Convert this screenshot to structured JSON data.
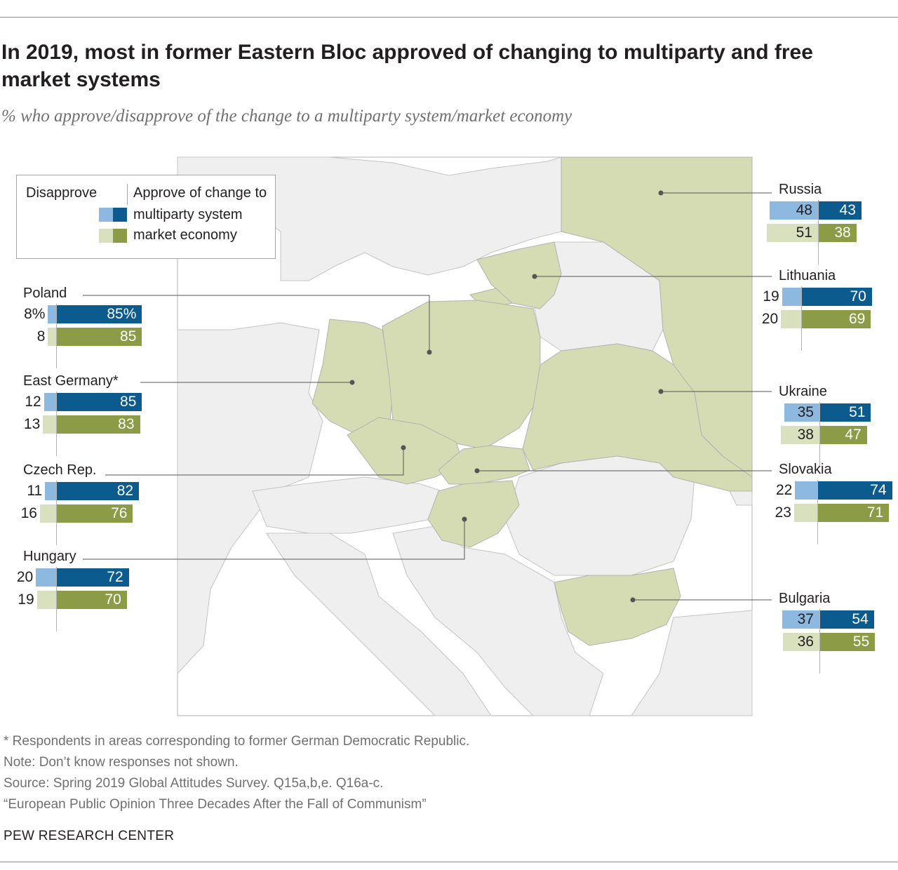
{
  "title": "In 2019, most in former Eastern Bloc approved of changing to multiparty and free market systems",
  "subtitle": "% who approve/disapprove of the change to a multiparty system/market economy",
  "legend": {
    "disapprove_label": "Disapprove",
    "approve_label": "Approve of change to",
    "multiparty_label": "multiparty system",
    "market_label": "market economy"
  },
  "colors": {
    "multiparty_approve": "#0b5b8f",
    "multiparty_disapprove": "#8db8e0",
    "market_approve": "#8c9b45",
    "market_disapprove": "#d9e0bd",
    "highlight_country": "#d5dbb2",
    "other_country": "#efefef",
    "sea": "#ffffff"
  },
  "chart_data": {
    "type": "bar",
    "series_names": [
      "Disapprove multiparty system",
      "Approve multiparty system",
      "Disapprove market economy",
      "Approve market economy"
    ],
    "countries": [
      {
        "name": "Poland",
        "multiparty": {
          "disapprove": 8,
          "approve": 85,
          "disapprove_label": "8%",
          "approve_label": "85%"
        },
        "market": {
          "disapprove": 8,
          "approve": 85,
          "disapprove_label": "8",
          "approve_label": "85"
        }
      },
      {
        "name": "East Germany*",
        "multiparty": {
          "disapprove": 12,
          "approve": 85,
          "disapprove_label": "12",
          "approve_label": "85"
        },
        "market": {
          "disapprove": 13,
          "approve": 83,
          "disapprove_label": "13",
          "approve_label": "83"
        }
      },
      {
        "name": "Czech Rep.",
        "multiparty": {
          "disapprove": 11,
          "approve": 82,
          "disapprove_label": "11",
          "approve_label": "82"
        },
        "market": {
          "disapprove": 16,
          "approve": 76,
          "disapprove_label": "16",
          "approve_label": "76"
        }
      },
      {
        "name": "Hungary",
        "multiparty": {
          "disapprove": 20,
          "approve": 72,
          "disapprove_label": "20",
          "approve_label": "72"
        },
        "market": {
          "disapprove": 19,
          "approve": 70,
          "disapprove_label": "19",
          "approve_label": "70"
        }
      },
      {
        "name": "Russia",
        "multiparty": {
          "disapprove": 48,
          "approve": 43,
          "disapprove_label": "48",
          "approve_label": "43"
        },
        "market": {
          "disapprove": 51,
          "approve": 38,
          "disapprove_label": "51",
          "approve_label": "38"
        }
      },
      {
        "name": "Lithuania",
        "multiparty": {
          "disapprove": 19,
          "approve": 70,
          "disapprove_label": "19",
          "approve_label": "70"
        },
        "market": {
          "disapprove": 20,
          "approve": 69,
          "disapprove_label": "20",
          "approve_label": "69"
        }
      },
      {
        "name": "Ukraine",
        "multiparty": {
          "disapprove": 35,
          "approve": 51,
          "disapprove_label": "35",
          "approve_label": "51"
        },
        "market": {
          "disapprove": 38,
          "approve": 47,
          "disapprove_label": "38",
          "approve_label": "47"
        }
      },
      {
        "name": "Slovakia",
        "multiparty": {
          "disapprove": 22,
          "approve": 74,
          "disapprove_label": "22",
          "approve_label": "74"
        },
        "market": {
          "disapprove": 23,
          "approve": 71,
          "disapprove_label": "23",
          "approve_label": "71"
        }
      },
      {
        "name": "Bulgaria",
        "multiparty": {
          "disapprove": 37,
          "approve": 54,
          "disapprove_label": "37",
          "approve_label": "54"
        },
        "market": {
          "disapprove": 36,
          "approve": 55,
          "disapprove_label": "36",
          "approve_label": "55"
        }
      }
    ]
  },
  "footnotes": {
    "asterisk": "* Respondents in areas corresponding to former German Democratic Republic.",
    "note": "Note: Don’t know responses not shown.",
    "source": "Source: Spring 2019 Global Attitudes Survey. Q15a,b,e. Q16a-c.",
    "report": "“European Public Opinion Three Decades After the Fall of Communism”"
  },
  "brand": "PEW RESEARCH CENTER"
}
